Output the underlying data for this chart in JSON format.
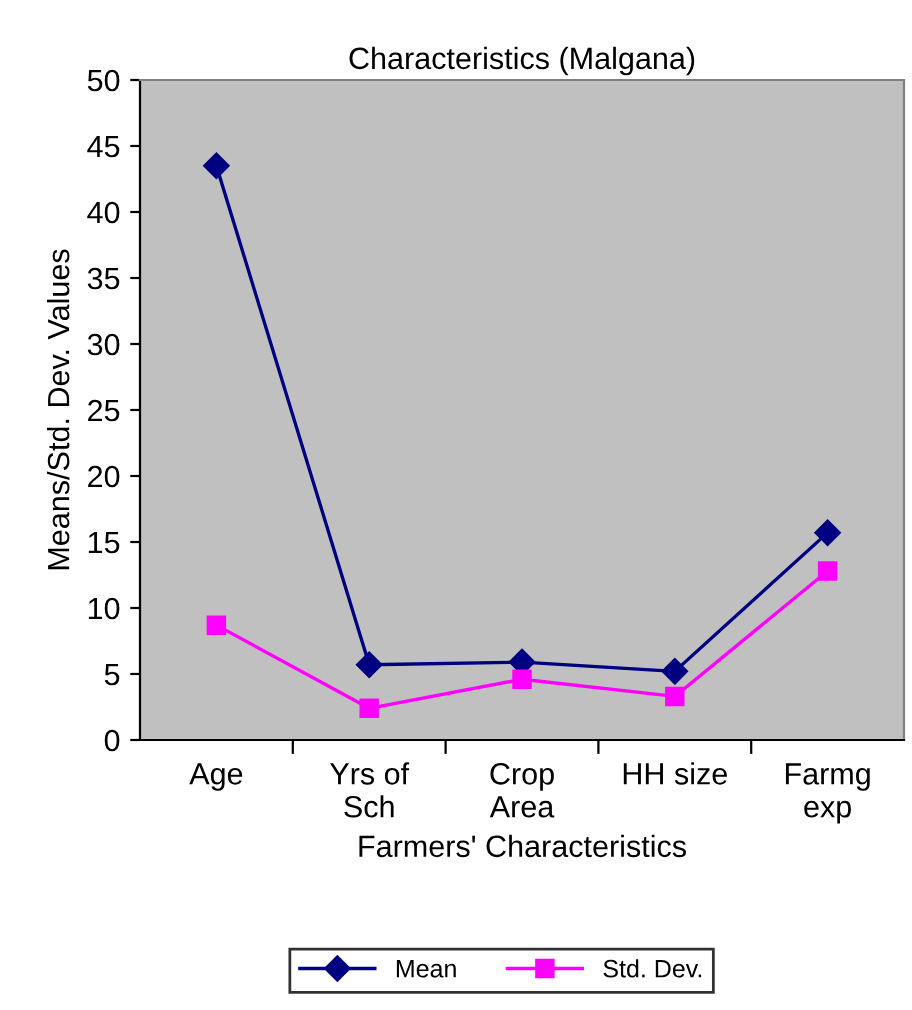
{
  "chart_data": {
    "type": "line",
    "title": "Characteristics (Malgana)",
    "xlabel": "Farmers' Characteristics",
    "ylabel": "Means/Std. Dev. Values",
    "categories": [
      "Age",
      "Yrs of\nSch",
      "Crop\nArea",
      "HH size",
      "Farmg\nexp"
    ],
    "series": [
      {
        "name": "Mean",
        "color": "#000080",
        "marker": "diamond",
        "values": [
          43.5,
          5.7,
          5.9,
          5.2,
          15.7
        ]
      },
      {
        "name": "Std. Dev.",
        "color": "#ff00ff",
        "marker": "square",
        "values": [
          8.7,
          2.4,
          4.6,
          3.3,
          12.8
        ]
      }
    ],
    "ylim": [
      0,
      50
    ],
    "yticks": [
      0,
      5,
      10,
      15,
      20,
      25,
      30,
      35,
      40,
      45,
      50
    ],
    "grid": false,
    "legend": "bottom",
    "line_style": "solid"
  }
}
